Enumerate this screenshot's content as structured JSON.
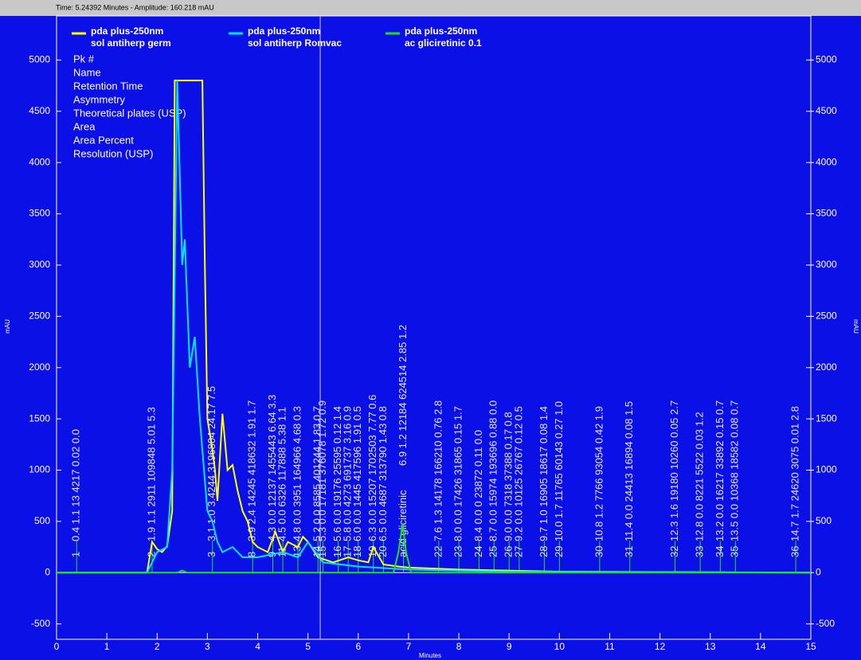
{
  "chart_data": {
    "type": "line",
    "status": "Time: 5.24392 Minutes - Amplitude: 160.218 mAU",
    "cursor_x": 5.24392,
    "x_label": "Minutes",
    "y_label": "mAU",
    "y2_label": "mAU",
    "xlim": [
      0,
      15
    ],
    "xticks": [
      0,
      1,
      2,
      3,
      4,
      5,
      6,
      7,
      8,
      9,
      10,
      11,
      12,
      13,
      14,
      15
    ],
    "ylim": [
      -650,
      5430
    ],
    "yticks": [
      -500,
      0,
      500,
      1000,
      1500,
      2000,
      2500,
      3000,
      3500,
      4000,
      4500,
      5000
    ],
    "y2lim": [
      -650,
      5430
    ],
    "y2ticks": [
      -500,
      0,
      500,
      1000,
      1500,
      2000,
      2500,
      3000,
      3500,
      4000,
      4500,
      5000
    ],
    "peak_table_fields": [
      "Pk #",
      "Name",
      "Retention Time",
      "Asymmetry",
      "Theoretical plates (USP)",
      "Area",
      "Area Percent",
      "Resolution (USP)"
    ],
    "series": [
      {
        "name": "pda plus-250nm",
        "sample": "sol antiherp germ",
        "color": "#ffff00",
        "x": [
          0,
          1.8,
          1.9,
          2.0,
          2.1,
          2.2,
          2.3,
          2.35,
          2.9,
          2.95,
          3.0,
          3.1,
          3.15,
          3.2,
          3.3,
          3.4,
          3.5,
          3.6,
          3.7,
          3.8,
          3.9,
          4.0,
          4.2,
          4.35,
          4.5,
          4.6,
          4.8,
          4.9,
          5.0,
          5.2,
          5.5,
          5.8,
          6.0,
          6.2,
          6.3,
          6.5,
          6.8,
          7.0,
          8.0,
          9.0,
          10.0,
          15.0
        ],
        "values": [
          0,
          0,
          300,
          230,
          200,
          260,
          600,
          4800,
          4800,
          3000,
          1500,
          1200,
          1000,
          700,
          1550,
          1000,
          1050,
          800,
          600,
          500,
          300,
          250,
          200,
          400,
          200,
          300,
          250,
          350,
          300,
          150,
          100,
          150,
          120,
          100,
          250,
          80,
          60,
          50,
          30,
          20,
          10,
          0
        ]
      },
      {
        "name": "pda plus-250nm",
        "sample": "sol antiherp Romvac",
        "color": "#00e5ff",
        "x": [
          0,
          1.8,
          2.0,
          2.2,
          2.3,
          2.4,
          2.5,
          2.55,
          2.65,
          2.75,
          2.85,
          3.0,
          3.1,
          3.2,
          3.3,
          3.5,
          3.7,
          4.0,
          4.5,
          4.8,
          5.0,
          5.3,
          6.0,
          7.0,
          9.0,
          15.0
        ],
        "values": [
          0,
          0,
          200,
          250,
          1000,
          4800,
          3000,
          3250,
          2000,
          2300,
          1500,
          600,
          500,
          300,
          200,
          250,
          150,
          150,
          200,
          150,
          300,
          100,
          60,
          30,
          10,
          0
        ]
      },
      {
        "name": "pda plus-250nm",
        "sample": "ac gliciretinic 0.1",
        "color": "#22dd22",
        "x": [
          0,
          2.4,
          2.5,
          2.6,
          6.7,
          6.8,
          6.88,
          6.95,
          7.05,
          15.0
        ],
        "values": [
          0,
          0,
          20,
          0,
          0,
          200,
          480,
          200,
          0,
          0
        ]
      }
    ],
    "peaks": [
      {
        "label": "1",
        "x": 0.4,
        "text": "0.4 1.1 13 4217 0.02 0.0"
      },
      {
        "label": "2",
        "x": 1.9,
        "text": "1.9 1.1 2911 109848 5.01 5.3"
      },
      {
        "label": "3",
        "x": 3.1,
        "text": "3.1 1.0 3.4244 3196804 24.17 7.5"
      },
      {
        "label": "8",
        "x": 3.9,
        "text": "3.9 2.4 14245 418632 1.91 1.7"
      },
      {
        "label": "9",
        "x": 4.3,
        "text": "4.3 0.0 12137 1455443 6.64 3.3"
      },
      {
        "label": "11",
        "x": 4.5,
        "text": "4.5 0.0 6326 117888 5.38 1.1"
      },
      {
        "label": "13",
        "x": 4.8,
        "text": "4.8 0.0 3951 164966 4.68 0.3"
      },
      {
        "label": "14",
        "x": 5.2,
        "text": "5.2 0.0 8585 401244 1.83 0.7"
      },
      {
        "label": "15",
        "x": 5.3,
        "text": "5.3 0.0 17181 376078 1.72 0.9"
      },
      {
        "label": "16",
        "x": 5.6,
        "text": "5.6 0.0 19176 25595 0.12 1.4"
      },
      {
        "label": "17",
        "x": 5.8,
        "text": "5.8 0.0 4273 691737 3.16 0.9"
      },
      {
        "label": "18",
        "x": 6.0,
        "text": "6.0 0.0 1445 417596 1.91 0.5"
      },
      {
        "label": "19",
        "x": 6.3,
        "text": "6.3 0.0 15207 1702503 7.77 0.6"
      },
      {
        "label": "20",
        "x": 6.5,
        "text": "6.5 0.0 4687 313790 1.43 0.8"
      },
      {
        "label": "acid gliciretinic",
        "x": 6.9,
        "text": "6.9 1.2 12184 624514 2.85 1.2"
      },
      {
        "label": "22",
        "x": 7.6,
        "text": "7.6 1.3 14178 166210 0.76 2.8"
      },
      {
        "label": "23",
        "x": 8.0,
        "text": "8.0 0.0 17426 31865 0.15 1.7"
      },
      {
        "label": "24",
        "x": 8.4,
        "text": "8.4 0.0 0 23872 0.11 0.0"
      },
      {
        "label": "25",
        "x": 8.7,
        "text": "8.7 0.0 15974 193696 0.88 0.0"
      },
      {
        "label": "26",
        "x": 9.0,
        "text": "9.0 0.0 7318 37388 0.17 0.8"
      },
      {
        "label": "27",
        "x": 9.2,
        "text": "9.2 0.0 10125 26767 0.12 0.5"
      },
      {
        "label": "28",
        "x": 9.7,
        "text": "9.7 1.0 16905 18617 0.08 1.4"
      },
      {
        "label": "29",
        "x": 10.0,
        "text": "10.0 1.7 11765 60143 0.27 1.0"
      },
      {
        "label": "30",
        "x": 10.8,
        "text": "10.8 1.2 7766 93054 0.42 1.9"
      },
      {
        "label": "31",
        "x": 11.4,
        "text": "11.4 0.0 24413 16894 0.08 1.5"
      },
      {
        "label": "32",
        "x": 12.3,
        "text": "12.3 1.6 19180 10260 0.05 2.7"
      },
      {
        "label": "33",
        "x": 12.8,
        "text": "12.8 0.0 8221 5522 0.03 1.2"
      },
      {
        "label": "34",
        "x": 13.2,
        "text": "13.2 0.0 16217 33892 0.15 0.7"
      },
      {
        "label": "35",
        "x": 13.5,
        "text": "13.5 0.0 10368 18582 0.08 0.7"
      },
      {
        "label": "36",
        "x": 14.7,
        "text": "14.7 1.7 24620 3075 0.01 2.8"
      }
    ]
  }
}
